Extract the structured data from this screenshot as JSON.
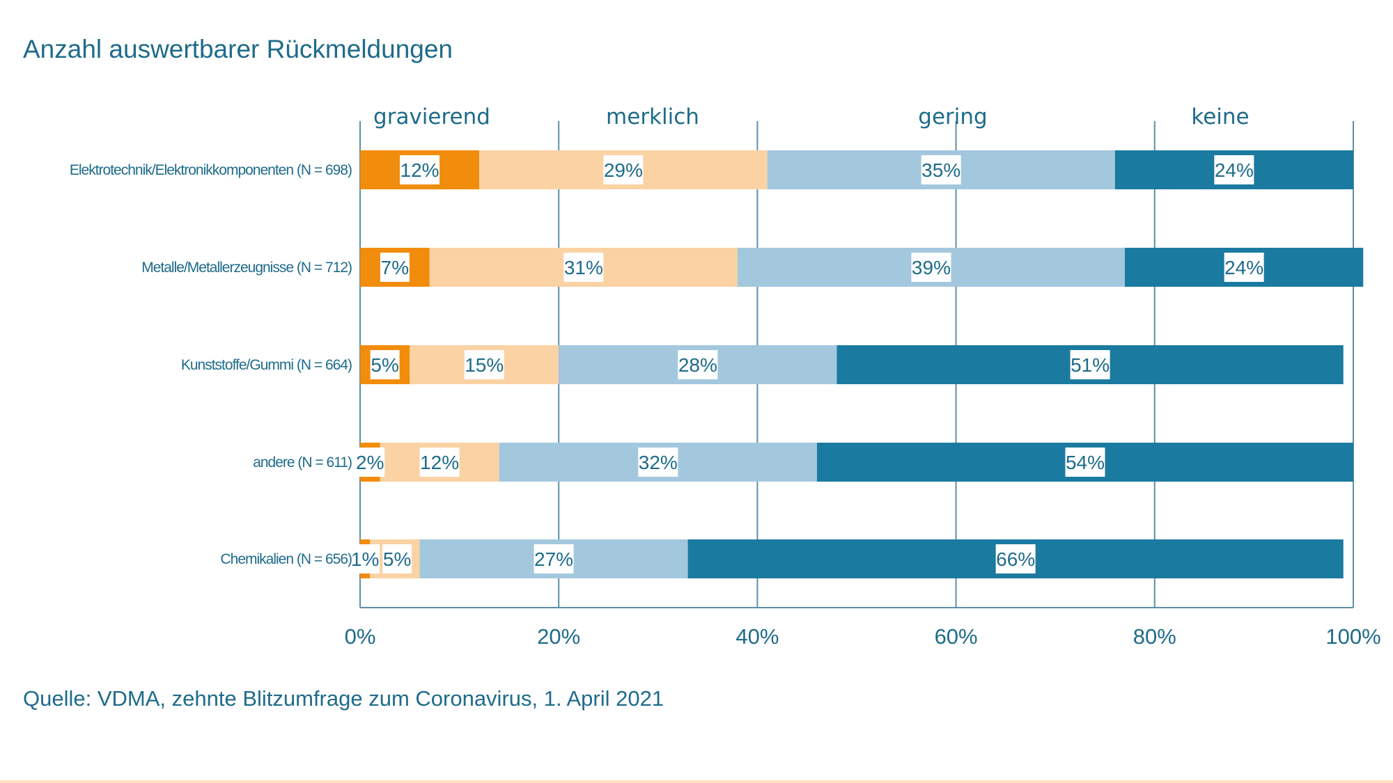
{
  "title": "Anzahl auswertbarer Rückmeldungen",
  "source": "Quelle: VDMA, zehnte Blitzumfrage zum Coronavirus, 1. April 2021",
  "colors": {
    "gravierend": "#f28c0c",
    "merklich": "#fbd2a4",
    "gering": "#a3c8de",
    "keine": "#1b7aa0",
    "axis": "#5c8fa6",
    "label_bg": "#ffffff",
    "text": "#1e6b8a"
  },
  "chart_data": {
    "type": "bar",
    "orientation": "horizontal",
    "stacked": true,
    "categories": [
      "Elektrotechnik/Elektronikkomponenten (N = 698)",
      "Metalle/Metallerzeugnisse (N = 712)",
      "Kunststoffe/Gummi (N = 664)",
      "andere (N = 611)",
      "Chemikalien (N = 656)"
    ],
    "series": [
      {
        "name": "gravierend",
        "values": [
          12,
          7,
          5,
          2,
          1
        ],
        "labels": [
          "12%",
          "7%",
          "5%",
          "2%",
          "1%"
        ]
      },
      {
        "name": "merklich",
        "values": [
          29,
          31,
          15,
          12,
          5
        ],
        "labels": [
          "29%",
          "31%",
          "15%",
          "12%",
          "5%"
        ]
      },
      {
        "name": "gering",
        "values": [
          35,
          39,
          28,
          32,
          27
        ],
        "labels": [
          "35%",
          "39%",
          "28%",
          "32%",
          "27%"
        ]
      },
      {
        "name": "keine",
        "values": [
          24,
          24,
          51,
          54,
          66
        ],
        "labels": [
          "24%",
          "24%",
          "51%",
          "54%",
          "66%"
        ]
      }
    ],
    "xlim": [
      0,
      100
    ],
    "xticks": [
      "0%",
      "20%",
      "40%",
      "60%",
      "80%",
      "100%"
    ],
    "grid": true,
    "legend": "top"
  }
}
